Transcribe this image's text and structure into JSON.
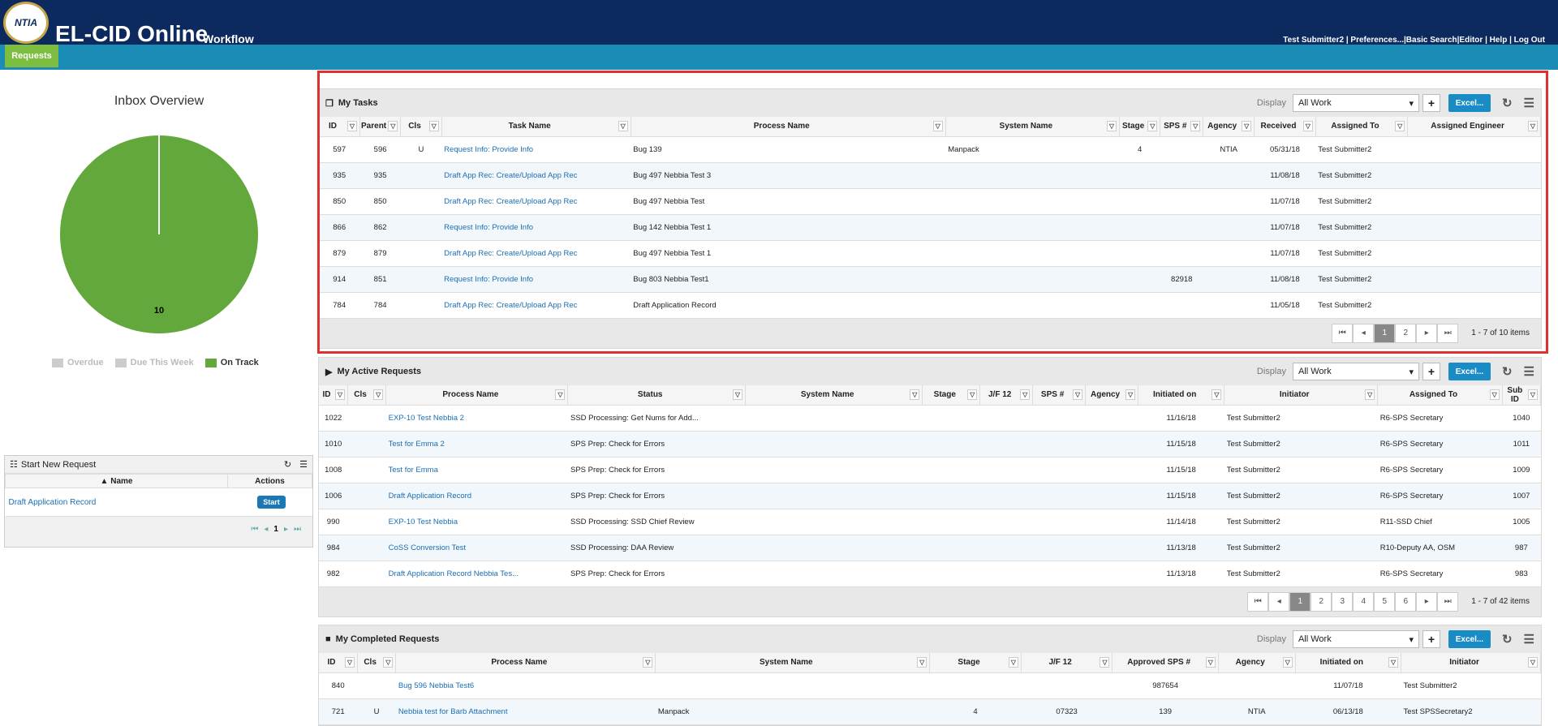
{
  "header": {
    "logo_text": "NTIA",
    "app_title": "EL-CID Online",
    "app_subtitle": "Workflow",
    "links": "Test Submitter2 | Preferences...|Basic Search|Editor | Help | Log Out"
  },
  "nav": {
    "active_tab": "Requests"
  },
  "inbox": {
    "title": "Inbox Overview",
    "legend": [
      "Overdue",
      "Due This Week",
      "On Track"
    ],
    "pie_label": "10"
  },
  "chart_data": {
    "type": "pie",
    "title": "Inbox Overview",
    "slices": [
      {
        "name": "Overdue",
        "value": 0,
        "color": "#cccccc"
      },
      {
        "name": "Due This Week",
        "value": 0,
        "color": "#cccccc"
      },
      {
        "name": "On Track",
        "value": 10,
        "color": "#62a83c"
      }
    ],
    "legend": "bottom"
  },
  "start_new": {
    "title": "Start New Request",
    "col_name": "Name",
    "col_actions": "Actions",
    "row": "Draft Application Record",
    "btn": "Start",
    "page": "1"
  },
  "common": {
    "display": "Display",
    "select": "All Work",
    "excel": "Excel..."
  },
  "tasks": {
    "title": "My Tasks",
    "cols": [
      "ID",
      "Parent",
      "Cls",
      "Task Name",
      "Process Name",
      "System Name",
      "Stage",
      "SPS #",
      "Agency",
      "Received",
      "Assigned To",
      "Assigned Engineer"
    ],
    "rows": [
      [
        "597",
        "596",
        "U",
        "Request Info: Provide Info",
        "Bug 139",
        "Manpack",
        "4",
        "",
        "NTIA",
        "05/31/18",
        "Test Submitter2",
        ""
      ],
      [
        "935",
        "935",
        "",
        "Draft App Rec: Create/Upload App Rec",
        "Bug 497 Nebbia Test 3",
        "",
        "",
        "",
        "",
        "11/08/18",
        "Test Submitter2",
        ""
      ],
      [
        "850",
        "850",
        "",
        "Draft App Rec: Create/Upload App Rec",
        "Bug 497 Nebbia Test",
        "",
        "",
        "",
        "",
        "11/07/18",
        "Test Submitter2",
        ""
      ],
      [
        "866",
        "862",
        "",
        "Request Info: Provide Info",
        "Bug 142 Nebbia Test 1",
        "",
        "",
        "",
        "",
        "11/07/18",
        "Test Submitter2",
        ""
      ],
      [
        "879",
        "879",
        "",
        "Draft App Rec: Create/Upload App Rec",
        "Bug 497 Nebbia Test 1",
        "",
        "",
        "",
        "",
        "11/07/18",
        "Test Submitter2",
        ""
      ],
      [
        "914",
        "851",
        "",
        "Request Info: Provide Info",
        "Bug 803 Nebbia Test1",
        "",
        "",
        "82918",
        "",
        "11/08/18",
        "Test Submitter2",
        ""
      ],
      [
        "784",
        "784",
        "",
        "Draft App Rec: Create/Upload App Rec",
        "Draft Application Record",
        "",
        "",
        "",
        "",
        "11/05/18",
        "Test Submitter2",
        ""
      ]
    ],
    "pages": [
      "1",
      "2"
    ],
    "info": "1 - 7 of 10 items"
  },
  "active": {
    "title": "My Active Requests",
    "cols": [
      "ID",
      "Cls",
      "Process Name",
      "Status",
      "System Name",
      "Stage",
      "J/F 12",
      "SPS #",
      "Agency",
      "Initiated on",
      "Initiator",
      "Assigned To",
      "Sub ID"
    ],
    "rows": [
      [
        "1022",
        "",
        "EXP-10 Test Nebbia 2",
        "SSD Processing: Get Nums for Add...",
        "",
        "",
        "",
        "",
        "",
        "11/16/18",
        "Test Submitter2",
        "R6-SPS Secretary",
        "1040"
      ],
      [
        "1010",
        "",
        "Test for Emma 2",
        "SPS Prep: Check for Errors",
        "",
        "",
        "",
        "",
        "",
        "11/15/18",
        "Test Submitter2",
        "R6-SPS Secretary",
        "1011"
      ],
      [
        "1008",
        "",
        "Test for Emma",
        "SPS Prep: Check for Errors",
        "",
        "",
        "",
        "",
        "",
        "11/15/18",
        "Test Submitter2",
        "R6-SPS Secretary",
        "1009"
      ],
      [
        "1006",
        "",
        "Draft Application Record",
        "SPS Prep: Check for Errors",
        "",
        "",
        "",
        "",
        "",
        "11/15/18",
        "Test Submitter2",
        "R6-SPS Secretary",
        "1007"
      ],
      [
        "990",
        "",
        "EXP-10 Test Nebbia",
        "SSD Processing: SSD Chief Review",
        "",
        "",
        "",
        "",
        "",
        "11/14/18",
        "Test Submitter2",
        "R11-SSD Chief",
        "1005"
      ],
      [
        "984",
        "",
        "CoSS Conversion Test",
        "SSD Processing: DAA Review",
        "",
        "",
        "",
        "",
        "",
        "11/13/18",
        "Test Submitter2",
        "R10-Deputy AA, OSM",
        "987"
      ],
      [
        "982",
        "",
        "Draft Application Record Nebbia Tes...",
        "SPS Prep: Check for Errors",
        "",
        "",
        "",
        "",
        "",
        "11/13/18",
        "Test Submitter2",
        "R6-SPS Secretary",
        "983"
      ]
    ],
    "pages": [
      "1",
      "2",
      "3",
      "4",
      "5",
      "6"
    ],
    "info": "1 - 7 of 42 items"
  },
  "completed": {
    "title": "My Completed Requests",
    "cols": [
      "ID",
      "Cls",
      "Process Name",
      "System Name",
      "Stage",
      "J/F 12",
      "Approved SPS #",
      "Agency",
      "Initiated on",
      "Initiator"
    ],
    "rows": [
      [
        "840",
        "",
        "Bug 596 Nebbia Test6",
        "",
        "",
        "",
        "987654",
        "",
        "11/07/18",
        "Test Submitter2"
      ],
      [
        "721",
        "U",
        "Nebbia test for Barb Attachment",
        "Manpack",
        "4",
        "07323",
        "139",
        "NTIA",
        "06/13/18",
        "Test SPSSecretary2"
      ]
    ]
  }
}
